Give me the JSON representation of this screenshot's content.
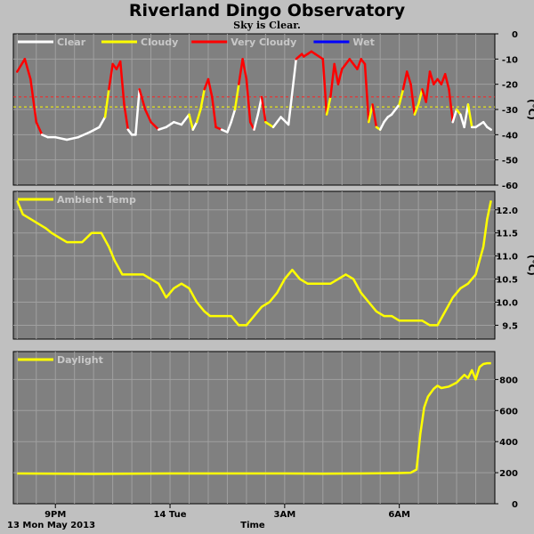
{
  "header": {
    "title": "Riverland Dingo Observatory",
    "subtitle": "Sky is Clear."
  },
  "footer": {
    "date_label": "13 Mon May 2013",
    "xlabel": "Time"
  },
  "colors": {
    "background": "#c0c0c0",
    "plot_background": "#808080",
    "grid": "#a0a0a0",
    "clear": "#ffffff",
    "cloudy": "#ffff00",
    "very_cloudy": "#ff0000",
    "wet": "#0000ff",
    "threshold_red": "#ff2020",
    "threshold_yellow": "#ffff00"
  },
  "chart_data": [
    {
      "type": "line",
      "name": "sky",
      "legend": [
        {
          "label": "Clear",
          "color": "#ffffff"
        },
        {
          "label": "Cloudy",
          "color": "#ffff00"
        },
        {
          "label": "Very Cloudy",
          "color": "#ff0000"
        },
        {
          "label": "Wet",
          "color": "#0000ff"
        }
      ],
      "ylabel": "(°C)",
      "ylim": [
        -60,
        0
      ],
      "yticks": [
        0,
        -10,
        -20,
        -30,
        -40,
        -50,
        -60
      ],
      "xlim": [
        19.9,
        32.5
      ],
      "grid": true,
      "thresholds": [
        {
          "value": -25,
          "color": "#ff2020"
        },
        {
          "value": -29,
          "color": "#ffff00"
        }
      ],
      "x": [
        20.0,
        20.2,
        20.35,
        20.5,
        20.65,
        20.8,
        21.0,
        21.3,
        21.6,
        21.9,
        22.15,
        22.3,
        22.4,
        22.5,
        22.6,
        22.7,
        22.8,
        22.9,
        23.0,
        23.1,
        23.2,
        23.35,
        23.5,
        23.7,
        23.9,
        24.1,
        24.3,
        24.5,
        24.6,
        24.7,
        24.8,
        24.9,
        25.0,
        25.1,
        25.2,
        25.35,
        25.5,
        25.6,
        25.7,
        25.8,
        25.9,
        26.0,
        26.1,
        26.2,
        26.3,
        26.4,
        26.5,
        26.7,
        26.9,
        27.1,
        27.3,
        27.45,
        27.5,
        27.6,
        27.7,
        27.8,
        27.9,
        28.0,
        28.1,
        28.2,
        28.3,
        28.4,
        28.5,
        28.6,
        28.7,
        28.8,
        28.9,
        29.0,
        29.1,
        29.2,
        29.3,
        29.4,
        29.5,
        29.6,
        29.7,
        29.8,
        29.9,
        30.0,
        30.1,
        30.2,
        30.3,
        30.4,
        30.5,
        30.6,
        30.7,
        30.8,
        30.9,
        31.0,
        31.1,
        31.2,
        31.3,
        31.4,
        31.5,
        31.6,
        31.7,
        31.8,
        31.9,
        32.0,
        32.1,
        32.2,
        32.3,
        32.4
      ],
      "values": [
        -15,
        -10,
        -18,
        -35,
        -40,
        -41,
        -41,
        -42,
        -41,
        -39,
        -37,
        -33,
        -22,
        -12,
        -14,
        -11,
        -28,
        -38,
        -40,
        -40,
        -22,
        -30,
        -35,
        -38,
        -37,
        -35,
        -36,
        -32,
        -38,
        -35,
        -30,
        -22,
        -18,
        -25,
        -37,
        -38,
        -39,
        -35,
        -30,
        -20,
        -10,
        -18,
        -35,
        -38,
        -32,
        -25,
        -35,
        -37,
        -33,
        -36,
        -10,
        -8,
        -9,
        -8,
        -7,
        -8,
        -9,
        -10,
        -32,
        -25,
        -12,
        -20,
        -14,
        -12,
        -10,
        -12,
        -14,
        -10,
        -12,
        -35,
        -28,
        -37,
        -38,
        -35,
        -33,
        -32,
        -30,
        -28,
        -22,
        -15,
        -20,
        -32,
        -28,
        -22,
        -27,
        -15,
        -20,
        -18,
        -20,
        -16,
        -22,
        -35,
        -30,
        -32,
        -37,
        -28,
        -37,
        -37,
        -36,
        -35,
        -37,
        -38
      ],
      "categories_sky": [
        "V",
        "V",
        "V",
        "V",
        "C",
        "C",
        "C",
        "C",
        "C",
        "C",
        "C",
        "Y",
        "V",
        "V",
        "V",
        "V",
        "V",
        "C",
        "C",
        "C",
        "V",
        "V",
        "V",
        "C",
        "C",
        "C",
        "C",
        "Y",
        "C",
        "Y",
        "Y",
        "V",
        "V",
        "V",
        "V",
        "C",
        "C",
        "C",
        "Y",
        "V",
        "V",
        "V",
        "V",
        "C",
        "C",
        "V",
        "Y",
        "C",
        "C",
        "C",
        "V",
        "V",
        "V",
        "V",
        "V",
        "V",
        "V",
        "V",
        "Y",
        "V",
        "V",
        "V",
        "V",
        "V",
        "V",
        "V",
        "V",
        "V",
        "V",
        "Y",
        "V",
        "Y",
        "C",
        "C",
        "C",
        "C",
        "C",
        "Y",
        "V",
        "V",
        "V",
        "Y",
        "Y",
        "V",
        "V",
        "V",
        "V",
        "V",
        "V",
        "V",
        "V",
        "C",
        "Y",
        "C",
        "C",
        "Y",
        "C",
        "C",
        "C",
        "C",
        "C",
        "C"
      ]
    },
    {
      "type": "line",
      "name": "ambient",
      "legend": [
        {
          "label": "Ambient Temp",
          "color": "#ffff00"
        }
      ],
      "ylabel": "(°C)",
      "ylim": [
        9.2,
        12.4
      ],
      "yticks": [
        9.5,
        10.0,
        10.5,
        11.0,
        11.5,
        12.0
      ],
      "xlim": [
        19.9,
        32.5
      ],
      "grid": true,
      "x": [
        20.0,
        20.15,
        20.35,
        20.55,
        20.75,
        20.9,
        21.1,
        21.3,
        21.5,
        21.7,
        21.95,
        22.2,
        22.4,
        22.55,
        22.75,
        22.9,
        23.1,
        23.3,
        23.5,
        23.7,
        23.9,
        24.1,
        24.3,
        24.5,
        24.7,
        24.9,
        25.05,
        25.2,
        25.4,
        25.6,
        25.8,
        26.0,
        26.2,
        26.4,
        26.6,
        26.8,
        27.0,
        27.2,
        27.4,
        27.6,
        27.8,
        28.0,
        28.2,
        28.4,
        28.6,
        28.8,
        29.0,
        29.2,
        29.4,
        29.6,
        29.8,
        30.0,
        30.2,
        30.4,
        30.6,
        30.8,
        31.0,
        31.2,
        31.4,
        31.6,
        31.8,
        32.0,
        32.1,
        32.2,
        32.3,
        32.4
      ],
      "values": [
        12.2,
        11.9,
        11.8,
        11.7,
        11.6,
        11.5,
        11.4,
        11.3,
        11.3,
        11.3,
        11.5,
        11.5,
        11.2,
        10.9,
        10.6,
        10.6,
        10.6,
        10.6,
        10.5,
        10.4,
        10.1,
        10.3,
        10.4,
        10.3,
        10.0,
        9.8,
        9.7,
        9.7,
        9.7,
        9.7,
        9.5,
        9.5,
        9.7,
        9.9,
        10.0,
        10.2,
        10.5,
        10.7,
        10.5,
        10.4,
        10.4,
        10.4,
        10.4,
        10.5,
        10.6,
        10.5,
        10.2,
        10.0,
        9.8,
        9.7,
        9.7,
        9.6,
        9.6,
        9.6,
        9.6,
        9.5,
        9.5,
        9.8,
        10.1,
        10.3,
        10.4,
        10.6,
        10.9,
        11.2,
        11.8,
        12.2
      ]
    },
    {
      "type": "line",
      "name": "daylight",
      "legend": [
        {
          "label": "Daylight",
          "color": "#ffff00"
        }
      ],
      "ylim": [
        0,
        980
      ],
      "yticks": [
        0,
        200,
        400,
        600,
        800
      ],
      "xlim": [
        19.9,
        32.5
      ],
      "xticks": [
        {
          "value": 21.0,
          "label": "9PM"
        },
        {
          "value": 24.0,
          "label": "14 Tue"
        },
        {
          "value": 27.0,
          "label": "3AM"
        },
        {
          "value": 30.0,
          "label": "6AM"
        }
      ],
      "grid": true,
      "x": [
        20.0,
        21.0,
        22.0,
        23.0,
        24.0,
        25.0,
        26.0,
        27.0,
        28.0,
        29.0,
        30.0,
        30.3,
        30.45,
        30.55,
        30.65,
        30.75,
        30.9,
        31.0,
        31.1,
        31.3,
        31.5,
        31.7,
        31.8,
        31.9,
        32.0,
        32.1,
        32.2,
        32.3,
        32.4
      ],
      "values": [
        195,
        193,
        192,
        193,
        195,
        195,
        195,
        195,
        193,
        195,
        198,
        200,
        220,
        450,
        620,
        690,
        740,
        760,
        745,
        755,
        780,
        830,
        810,
        860,
        800,
        880,
        900,
        905,
        905
      ]
    }
  ]
}
